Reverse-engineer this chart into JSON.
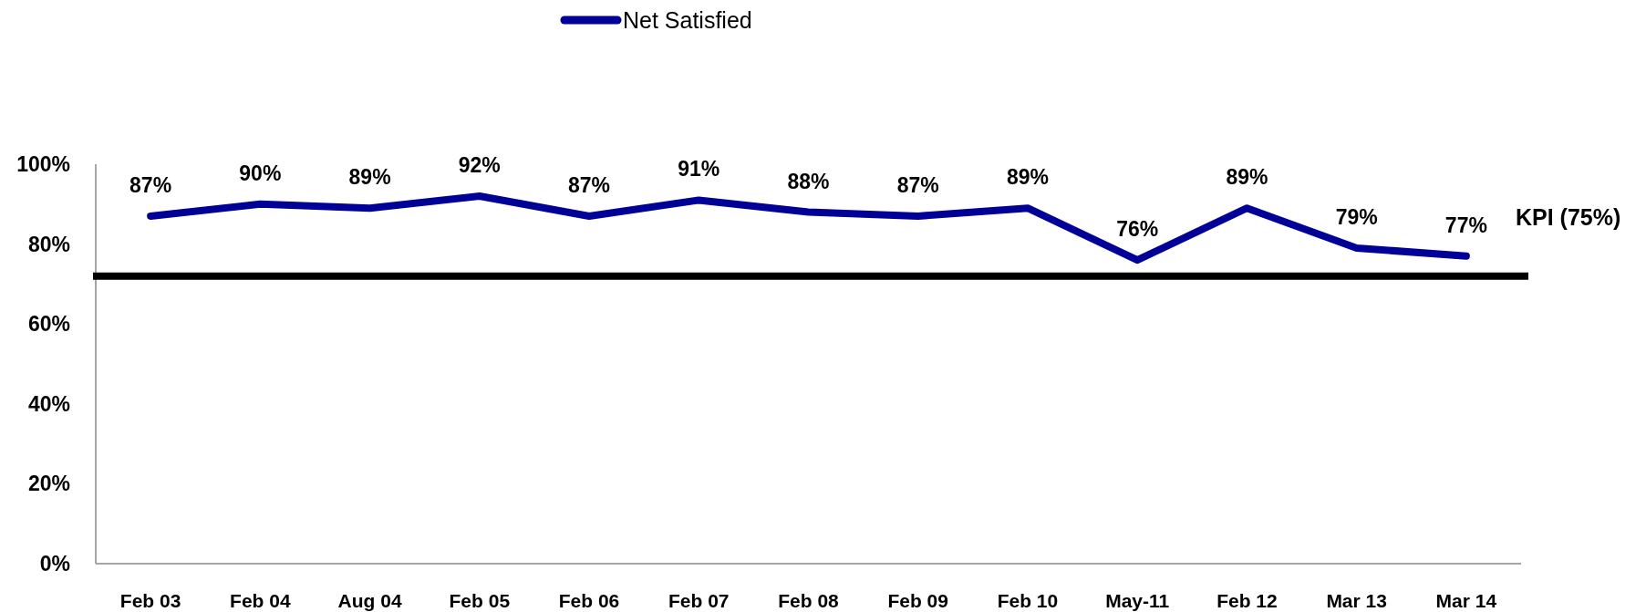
{
  "chart_data": {
    "type": "line",
    "categories": [
      "Feb 03",
      "Feb 04",
      "Aug 04",
      "Feb 05",
      "Feb 06",
      "Feb 07",
      "Feb 08",
      "Feb 09",
      "Feb 10",
      "May-11",
      "Feb 12",
      "Mar 13",
      "Mar 14"
    ],
    "series": [
      {
        "name": "Net Satisfied",
        "color": "#000099",
        "values": [
          87,
          90,
          89,
          92,
          87,
          91,
          88,
          87,
          89,
          76,
          89,
          79,
          77
        ],
        "value_labels": [
          "87%",
          "90%",
          "89%",
          "92%",
          "87%",
          "91%",
          "88%",
          "87%",
          "89%",
          "76%",
          "89%",
          "79%",
          "77%"
        ]
      }
    ],
    "ylim": [
      0,
      100
    ],
    "yticks": [
      {
        "value": 0,
        "label": "0%"
      },
      {
        "value": 20,
        "label": "20%"
      },
      {
        "value": 40,
        "label": "40%"
      },
      {
        "value": 60,
        "label": "60%"
      },
      {
        "value": 80,
        "label": "80%"
      },
      {
        "value": 100,
        "label": "100%"
      }
    ],
    "ref_lines": [
      {
        "axis": "y",
        "value": 72,
        "label": "KPI (75%)",
        "color": "#000000"
      }
    ],
    "legend": "top"
  }
}
